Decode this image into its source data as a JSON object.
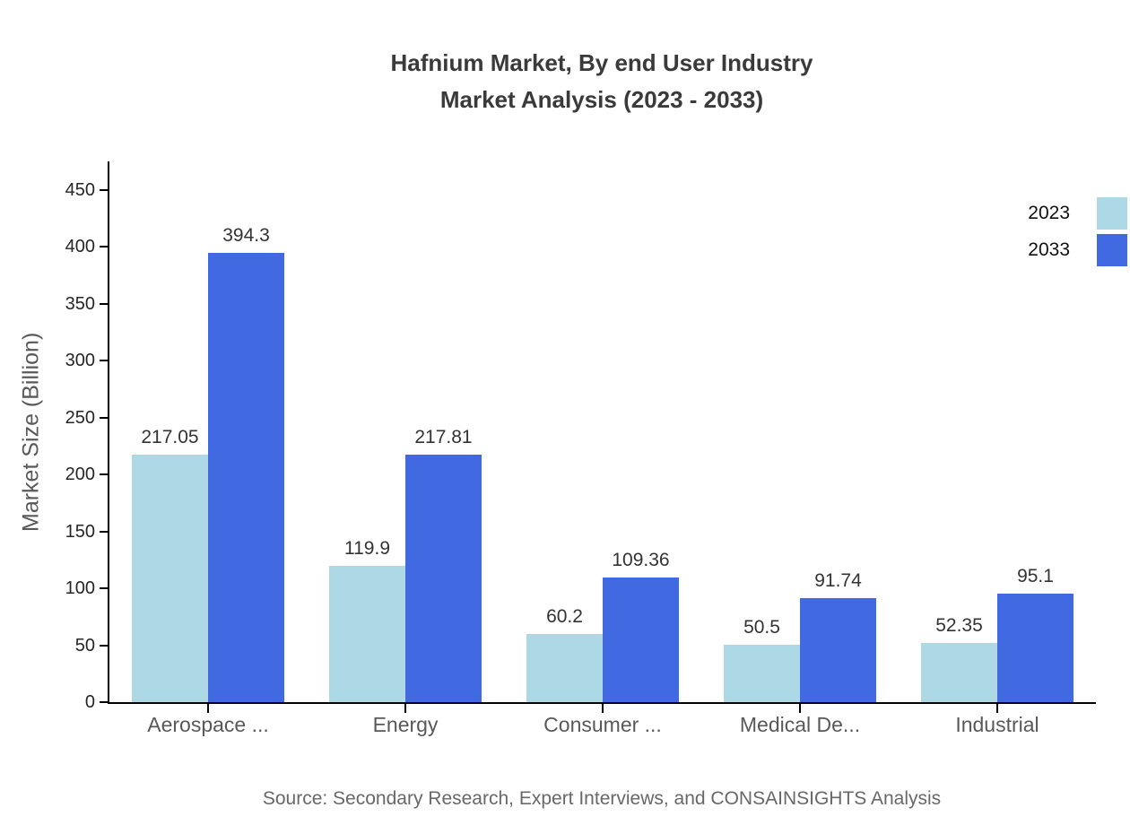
{
  "page": {
    "title_line1": "Hafnium Market, By end User Industry",
    "title_line2": "Market Analysis (2023 - 2033)",
    "source": "Source: Secondary Research, Expert Interviews, and CONSAINSIGHTS Analysis"
  },
  "chart_data": {
    "type": "bar",
    "title": "Hafnium Market, By end User Industry Market Analysis (2023 - 2033)",
    "categories": [
      "Aerospace ...",
      "Energy",
      "Consumer ...",
      "Medical De...",
      "Industrial"
    ],
    "series": [
      {
        "name": "2023",
        "color": "#ADD8E6",
        "values": [
          217.05,
          119.9,
          60.2,
          50.5,
          52.35
        ]
      },
      {
        "name": "2033",
        "color": "#4169E1",
        "values": [
          394.3,
          217.81,
          109.36,
          91.74,
          95.1
        ]
      }
    ],
    "xlabel": "",
    "ylabel": "Market Size (Billion)",
    "ylim": [
      0,
      475
    ],
    "yticks": [
      0,
      50,
      100,
      150,
      200,
      250,
      300,
      350,
      400,
      450
    ],
    "grid": false,
    "legend_position": "top-right",
    "value_labels": true
  }
}
